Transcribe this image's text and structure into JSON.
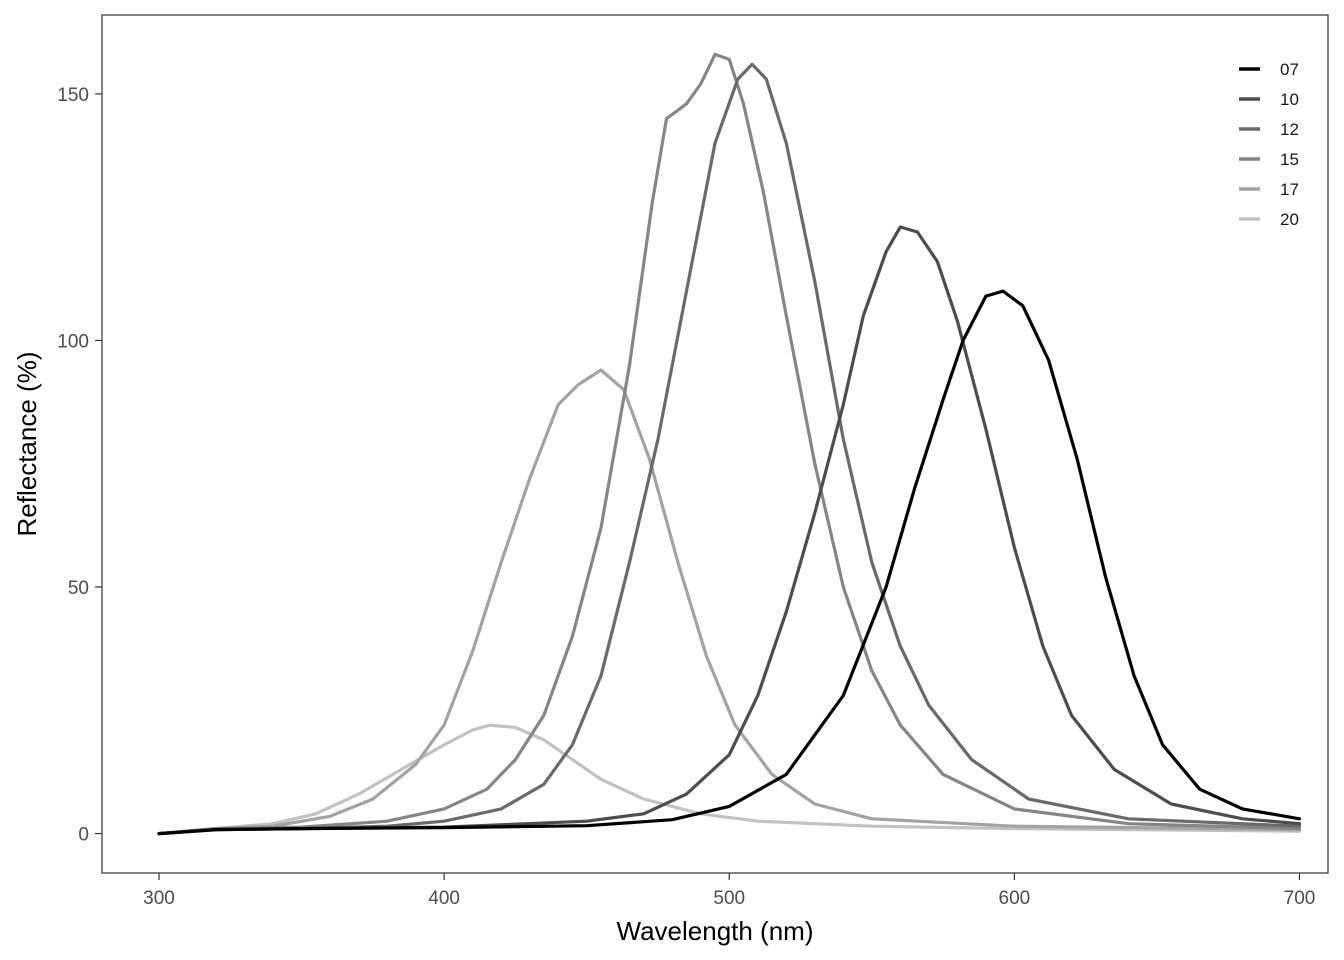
{
  "chart_data": {
    "type": "line",
    "title": "",
    "xlabel": "Wavelength (nm)",
    "ylabel": "Reflectance (%)",
    "xlim": [
      280,
      710
    ],
    "ylim": [
      -8,
      166
    ],
    "x_ticks": [
      300,
      400,
      500,
      600,
      700
    ],
    "y_ticks": [
      0,
      50,
      100,
      150
    ],
    "grid": false,
    "legend_position": "top-right",
    "series": [
      {
        "name": "07",
        "color": "#000000",
        "points": [
          [
            300,
            0
          ],
          [
            320,
            0.8
          ],
          [
            350,
            1
          ],
          [
            400,
            1.2
          ],
          [
            450,
            1.6
          ],
          [
            480,
            2.8
          ],
          [
            500,
            5.5
          ],
          [
            520,
            12
          ],
          [
            540,
            28
          ],
          [
            555,
            50
          ],
          [
            565,
            70
          ],
          [
            575,
            88
          ],
          [
            582,
            100
          ],
          [
            590,
            109
          ],
          [
            596,
            110
          ],
          [
            603,
            107
          ],
          [
            612,
            96
          ],
          [
            622,
            76
          ],
          [
            632,
            52
          ],
          [
            642,
            32
          ],
          [
            652,
            18
          ],
          [
            665,
            9
          ],
          [
            680,
            5
          ],
          [
            700,
            3
          ]
        ]
      },
      {
        "name": "10",
        "color": "#4d4d4d",
        "points": [
          [
            300,
            0
          ],
          [
            320,
            0.8
          ],
          [
            350,
            1
          ],
          [
            400,
            1.3
          ],
          [
            450,
            2.5
          ],
          [
            470,
            4
          ],
          [
            485,
            8
          ],
          [
            500,
            16
          ],
          [
            510,
            28
          ],
          [
            520,
            45
          ],
          [
            530,
            65
          ],
          [
            540,
            87
          ],
          [
            547,
            105
          ],
          [
            555,
            118
          ],
          [
            560,
            123
          ],
          [
            566,
            122
          ],
          [
            573,
            116
          ],
          [
            580,
            104
          ],
          [
            590,
            82
          ],
          [
            600,
            58
          ],
          [
            610,
            38
          ],
          [
            620,
            24
          ],
          [
            635,
            13
          ],
          [
            655,
            6
          ],
          [
            680,
            3
          ],
          [
            700,
            2
          ]
        ]
      },
      {
        "name": "12",
        "color": "#6a6a6a",
        "points": [
          [
            300,
            0
          ],
          [
            320,
            0.8
          ],
          [
            350,
            1
          ],
          [
            380,
            1.5
          ],
          [
            400,
            2.5
          ],
          [
            420,
            5
          ],
          [
            435,
            10
          ],
          [
            445,
            18
          ],
          [
            455,
            32
          ],
          [
            465,
            55
          ],
          [
            475,
            80
          ],
          [
            485,
            110
          ],
          [
            495,
            140
          ],
          [
            503,
            153
          ],
          [
            508,
            156
          ],
          [
            513,
            153
          ],
          [
            520,
            140
          ],
          [
            530,
            112
          ],
          [
            540,
            80
          ],
          [
            550,
            55
          ],
          [
            560,
            38
          ],
          [
            570,
            26
          ],
          [
            585,
            15
          ],
          [
            605,
            7
          ],
          [
            640,
            3
          ],
          [
            700,
            1.5
          ]
        ]
      },
      {
        "name": "15",
        "color": "#868686",
        "points": [
          [
            300,
            0
          ],
          [
            320,
            1
          ],
          [
            350,
            1.3
          ],
          [
            380,
            2.5
          ],
          [
            400,
            5
          ],
          [
            415,
            9
          ],
          [
            425,
            15
          ],
          [
            435,
            24
          ],
          [
            445,
            40
          ],
          [
            455,
            62
          ],
          [
            465,
            95
          ],
          [
            473,
            128
          ],
          [
            478,
            145
          ],
          [
            485,
            148
          ],
          [
            490,
            152
          ],
          [
            495,
            158
          ],
          [
            500,
            157
          ],
          [
            505,
            148
          ],
          [
            512,
            130
          ],
          [
            520,
            105
          ],
          [
            530,
            75
          ],
          [
            540,
            50
          ],
          [
            550,
            33
          ],
          [
            560,
            22
          ],
          [
            575,
            12
          ],
          [
            600,
            5
          ],
          [
            640,
            2
          ],
          [
            700,
            1
          ]
        ]
      },
      {
        "name": "17",
        "color": "#a3a3a3",
        "points": [
          [
            300,
            0
          ],
          [
            320,
            1
          ],
          [
            340,
            1.5
          ],
          [
            360,
            3.5
          ],
          [
            375,
            7
          ],
          [
            390,
            14
          ],
          [
            400,
            22
          ],
          [
            410,
            37
          ],
          [
            420,
            55
          ],
          [
            430,
            72
          ],
          [
            440,
            87
          ],
          [
            447,
            91
          ],
          [
            455,
            94
          ],
          [
            463,
            90
          ],
          [
            472,
            76
          ],
          [
            482,
            55
          ],
          [
            492,
            36
          ],
          [
            502,
            22
          ],
          [
            515,
            12
          ],
          [
            530,
            6
          ],
          [
            550,
            3
          ],
          [
            600,
            1.5
          ],
          [
            700,
            0.8
          ]
        ]
      },
      {
        "name": "20",
        "color": "#c2c2c2",
        "points": [
          [
            300,
            0
          ],
          [
            320,
            1
          ],
          [
            340,
            2
          ],
          [
            355,
            4
          ],
          [
            370,
            8
          ],
          [
            385,
            13
          ],
          [
            400,
            18
          ],
          [
            410,
            21
          ],
          [
            416,
            22
          ],
          [
            425,
            21.5
          ],
          [
            435,
            19
          ],
          [
            445,
            15
          ],
          [
            455,
            11
          ],
          [
            470,
            7
          ],
          [
            490,
            4
          ],
          [
            510,
            2.5
          ],
          [
            550,
            1.5
          ],
          [
            600,
            1
          ],
          [
            700,
            0.5
          ]
        ]
      }
    ]
  }
}
